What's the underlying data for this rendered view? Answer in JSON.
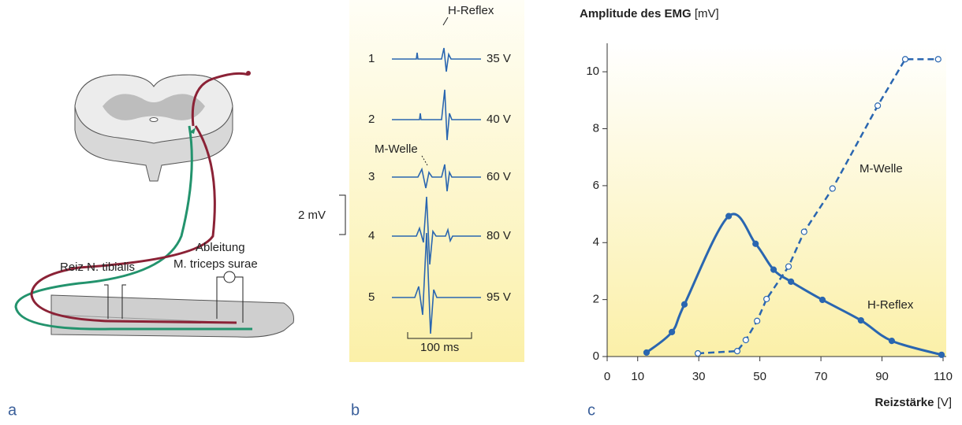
{
  "panels": {
    "a": {
      "letter": "a",
      "stimulus": "Reiz N. tibialis",
      "recording": "Ableitung",
      "muscle": "M. triceps surae"
    },
    "b": {
      "letter": "b",
      "rows": [
        {
          "number": "1",
          "voltage": "35 V"
        },
        {
          "number": "2",
          "voltage": "40 V"
        },
        {
          "number": "3",
          "voltage": "60 V"
        },
        {
          "number": "4",
          "voltage": "80 V"
        },
        {
          "number": "5",
          "voltage": "95 V"
        }
      ],
      "h_label": "H-Reflex",
      "m_label": "M-Welle",
      "scale_y": "2 mV",
      "scale_x": "100 ms"
    },
    "c": {
      "letter": "c"
    }
  },
  "chart_data": {
    "type": "line",
    "title": "Amplitude des EMG",
    "title_unit": "[mV]",
    "x_label": "Reizstärke",
    "x_unit": "[V]",
    "xlim": [
      0,
      110
    ],
    "xticks": [
      0,
      10,
      30,
      50,
      70,
      90,
      110
    ],
    "ylim": [
      0,
      11
    ],
    "yticks": [
      0,
      2,
      4,
      6,
      8,
      10
    ],
    "series": [
      {
        "name": "H-Reflex",
        "color": "#2a66b0",
        "dash": false,
        "x": [
          12.9,
          21.2,
          25.3,
          39.8,
          48.6,
          54.5,
          60.2,
          70.5,
          83.1,
          93.2,
          109.5
        ],
        "values": [
          0.14,
          0.86,
          1.83,
          4.93,
          3.96,
          3.05,
          2.63,
          1.99,
          1.27,
          0.55,
          0.06
        ]
      },
      {
        "name": "M-Welle",
        "color": "#2a66b0",
        "dash": true,
        "x": [
          29.7,
          42.6,
          45.4,
          49.1,
          52.2,
          59.4,
          64.5,
          73.8,
          88.6,
          97.6,
          108.4
        ],
        "values": [
          0.11,
          0.19,
          0.58,
          1.25,
          2.02,
          3.16,
          4.38,
          5.9,
          8.81,
          10.44,
          10.44
        ]
      }
    ]
  }
}
